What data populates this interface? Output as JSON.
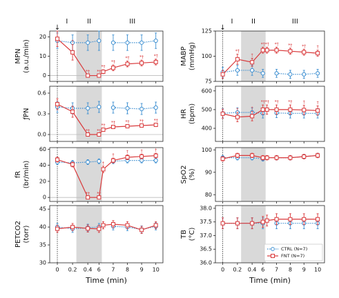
{
  "chart_data": [
    {
      "type": "line",
      "ylabel": [
        "MPN",
        "(a.u./min)"
      ],
      "phases": [
        "I",
        "II",
        "III"
      ],
      "onset": "↓",
      "x": [
        0,
        0.2,
        0.4,
        6,
        6.3,
        7,
        8,
        9,
        10
      ],
      "xlim": [
        -0.1,
        10.5
      ],
      "xbreak": [
        0.45,
        5.8
      ],
      "xticks": [
        0,
        0.2,
        0.4,
        6,
        7,
        8,
        9,
        10
      ],
      "shade": [
        0.25,
        6.2
      ],
      "ylim": [
        -3,
        23
      ],
      "yticks": [
        0,
        10,
        20
      ],
      "hline": 0,
      "series": [
        {
          "name": "CTRL (N=7)",
          "color": "#3d8fd1",
          "values": [
            18,
            17,
            17,
            18,
            null,
            17,
            17,
            17,
            18
          ],
          "errors": [
            4,
            4,
            4,
            5,
            null,
            4,
            4,
            4,
            4
          ]
        },
        {
          "name": "FNT (N=7)",
          "color": "#d9383a",
          "values": [
            19,
            12,
            0,
            0,
            2,
            4,
            6,
            6.5,
            7
          ],
          "errors": [
            4,
            4,
            0.5,
            0.5,
            1,
            1.5,
            1.5,
            1.5,
            1.5
          ],
          "labels": [
            null,
            "†",
            "*†",
            "*†",
            "*†",
            "*†",
            "*†",
            "*†",
            "*†"
          ]
        }
      ]
    },
    {
      "type": "line",
      "ylabel": [
        "ƒPN"
      ],
      "x": [
        0,
        0.2,
        0.4,
        6,
        6.3,
        7,
        8,
        9,
        10
      ],
      "xlim": [
        -0.1,
        10.5
      ],
      "xbreak": [
        0.45,
        5.8
      ],
      "xticks": [
        0,
        0.2,
        0.4,
        6,
        7,
        8,
        9,
        10
      ],
      "shade": [
        0.25,
        6.2
      ],
      "ylim": [
        -0.1,
        0.7
      ],
      "yticks": [
        {
          "value": 0,
          "label": "0.0"
        },
        {
          "value": 0.3,
          "label": "0.3"
        },
        {
          "value": 0.6,
          "label": "0.6"
        }
      ],
      "hline": 0,
      "series": [
        {
          "name": "CTRL (N=7)",
          "color": "#3d8fd1",
          "values": [
            0.4,
            0.38,
            0.38,
            0.4,
            null,
            0.39,
            0.38,
            0.37,
            0.39
          ],
          "errors": [
            0.08,
            0.08,
            0.08,
            0.08,
            null,
            0.08,
            0.08,
            0.08,
            0.08
          ]
        },
        {
          "name": "FNT (N=7)",
          "color": "#d9383a",
          "values": [
            0.44,
            0.33,
            0,
            0,
            0.07,
            0.11,
            0.12,
            0.13,
            0.14
          ],
          "errors": [
            0.08,
            0.08,
            0.01,
            0.01,
            0.02,
            0.02,
            0.02,
            0.02,
            0.02
          ],
          "labels": [
            null,
            null,
            "*†",
            "*†",
            "*†",
            "*†",
            "*†",
            "*†",
            "*†"
          ]
        }
      ]
    },
    {
      "type": "line",
      "ylabel": [
        "fR",
        "(br/min)"
      ],
      "x": [
        0,
        0.2,
        0.4,
        6,
        6.3,
        7,
        8,
        9,
        10
      ],
      "xlim": [
        -0.1,
        10.5
      ],
      "xbreak": [
        0.45,
        5.8
      ],
      "xticks": [
        0,
        0.2,
        0.4,
        6,
        7,
        8,
        9,
        10
      ],
      "shade": [
        0.25,
        6.2
      ],
      "ylim": [
        -5,
        62
      ],
      "yticks": [
        0,
        20,
        40,
        60
      ],
      "hline": 0,
      "series": [
        {
          "name": "CTRL (N=7)",
          "color": "#3d8fd1",
          "values": [
            44,
            43,
            44,
            45,
            null,
            45,
            46,
            46,
            46
          ],
          "errors": [
            3,
            3,
            3,
            3,
            null,
            3,
            3,
            3,
            3
          ]
        },
        {
          "name": "FNT (N=7)",
          "color": "#d9383a",
          "values": [
            47,
            41,
            0,
            0,
            35,
            46,
            50,
            51,
            52
          ],
          "errors": [
            3,
            3,
            1,
            1,
            4,
            3,
            3,
            3,
            3
          ],
          "labels": [
            null,
            null,
            "*†",
            "*†",
            "†",
            "†",
            "†",
            "†",
            "†"
          ]
        }
      ]
    },
    {
      "type": "line",
      "ylabel": [
        "PETCO2",
        "(torr)"
      ],
      "xlabel": "Time (min)",
      "x": [
        0,
        0.2,
        0.4,
        6,
        6.3,
        7,
        8,
        9,
        10
      ],
      "xlim": [
        -0.1,
        10.5
      ],
      "xbreak": [
        0.45,
        5.8
      ],
      "xticks": [
        0,
        0.2,
        0.4,
        6,
        7,
        8,
        9,
        10
      ],
      "shade": [
        0.25,
        6.2
      ],
      "ylim": [
        30,
        46
      ],
      "yticks": [
        30,
        35,
        40,
        45
      ],
      "series": [
        {
          "name": "CTRL (N=7)",
          "color": "#3d8fd1",
          "values": [
            40,
            39.5,
            39.8,
            40,
            null,
            40.2,
            40,
            39.3,
            40.2
          ],
          "errors": [
            1,
            1,
            1,
            1,
            null,
            1,
            1,
            1,
            1
          ]
        },
        {
          "name": "FNT (N=7)",
          "color": "#d9383a",
          "values": [
            39.5,
            40,
            39.6,
            39.5,
            40.5,
            40.8,
            40.5,
            39.2,
            40.5
          ],
          "errors": [
            1,
            1,
            1,
            1,
            1,
            1,
            1,
            1,
            1
          ]
        }
      ]
    },
    {
      "type": "line",
      "ylabel": [
        "MABP",
        "(mmHg)"
      ],
      "phases": [
        "I",
        "II",
        "III"
      ],
      "onset": "↓",
      "x": [
        0,
        0.2,
        0.4,
        6,
        6.3,
        7,
        8,
        9,
        10
      ],
      "xlim": [
        -0.1,
        10.5
      ],
      "xbreak": [
        0.45,
        5.8
      ],
      "xticks": [
        0,
        0.2,
        0.4,
        6,
        7,
        8,
        9,
        10
      ],
      "shade": [
        0.25,
        6.2
      ],
      "ylim": [
        75,
        125
      ],
      "yticks": [
        75,
        100,
        125
      ],
      "series": [
        {
          "name": "CTRL (N=7)",
          "color": "#3d8fd1",
          "values": [
            84,
            86,
            86,
            83,
            null,
            83,
            82,
            82,
            83
          ],
          "errors": [
            5,
            5,
            5,
            4,
            null,
            4,
            4,
            4,
            4
          ]
        },
        {
          "name": "FNT (N=7)",
          "color": "#d9383a",
          "values": [
            82,
            97,
            94,
            106,
            106,
            106,
            105,
            104,
            103
          ],
          "errors": [
            4,
            5,
            4,
            3,
            3,
            3,
            3,
            3,
            3
          ],
          "labels": [
            null,
            "*†",
            "†",
            "*†",
            "*†",
            "*†",
            "*†",
            "*†",
            "†"
          ]
        }
      ]
    },
    {
      "type": "line",
      "ylabel": [
        "HR",
        "(bpm)"
      ],
      "x": [
        0,
        0.2,
        0.4,
        6,
        6.3,
        7,
        8,
        9,
        10
      ],
      "xlim": [
        -0.1,
        10.5
      ],
      "xbreak": [
        0.45,
        5.8
      ],
      "xticks": [
        0,
        0.2,
        0.4,
        6,
        7,
        8,
        9,
        10
      ],
      "shade": [
        0.25,
        6.2
      ],
      "ylim": [
        330,
        625
      ],
      "yticks": [
        400,
        500,
        600
      ],
      "series": [
        {
          "name": "CTRL (N=7)",
          "color": "#3d8fd1",
          "values": [
            480,
            485,
            485,
            480,
            null,
            482,
            480,
            480,
            480
          ],
          "errors": [
            25,
            25,
            25,
            25,
            null,
            25,
            25,
            25,
            25
          ]
        },
        {
          "name": "FNT (N=7)",
          "color": "#d9383a",
          "values": [
            478,
            460,
            465,
            500,
            500,
            500,
            500,
            498,
            495
          ],
          "errors": [
            25,
            25,
            25,
            25,
            25,
            25,
            25,
            25,
            25
          ],
          "labels": [
            null,
            "†",
            "†",
            "*†",
            "*†",
            "*†",
            "*†",
            "†",
            "†"
          ]
        }
      ]
    },
    {
      "type": "line",
      "ylabel": [
        "SpO2",
        "(%)"
      ],
      "x": [
        0,
        0.2,
        0.4,
        6,
        6.3,
        7,
        8,
        9,
        10
      ],
      "xlim": [
        -0.1,
        10.5
      ],
      "xbreak": [
        0.45,
        5.8
      ],
      "xticks": [
        0,
        0.2,
        0.4,
        6,
        7,
        8,
        9,
        10
      ],
      "shade": [
        0.25,
        6.2
      ],
      "ylim": [
        77,
        101
      ],
      "yticks": [
        80,
        90,
        100
      ],
      "series": [
        {
          "name": "CTRL (N=7)",
          "color": "#3d8fd1",
          "values": [
            96.5,
            96.5,
            96.5,
            96,
            null,
            96.5,
            96.5,
            97,
            97.5
          ],
          "errors": [
            1,
            1,
            1,
            1,
            null,
            1,
            1,
            1,
            1
          ]
        },
        {
          "name": "FNT (N=7)",
          "color": "#d9383a",
          "values": [
            96,
            97.5,
            97.5,
            96.5,
            96.5,
            96.5,
            96.5,
            97,
            97.5
          ],
          "errors": [
            1,
            1,
            1,
            1,
            1,
            1,
            1,
            1,
            1
          ]
        }
      ]
    },
    {
      "type": "line",
      "ylabel": [
        "TB",
        "(°C)"
      ],
      "xlabel": "Time (min)",
      "legend": "lower right",
      "x": [
        0,
        0.2,
        0.4,
        6,
        6.3,
        7,
        8,
        9,
        10
      ],
      "xlim": [
        -0.1,
        10.5
      ],
      "xbreak": [
        0.45,
        5.8
      ],
      "xticks": [
        0,
        0.2,
        0.4,
        6,
        7,
        8,
        9,
        10
      ],
      "shade": [
        0.25,
        6.2
      ],
      "ylim": [
        36,
        38.1
      ],
      "yticks": [
        {
          "value": 36,
          "label": "36.0"
        },
        {
          "value": 36.5,
          "label": "36.5"
        },
        {
          "value": 37,
          "label": "37.0"
        },
        {
          "value": 37.5,
          "label": "37.5"
        },
        {
          "value": 38,
          "label": "38.0"
        }
      ],
      "series": [
        {
          "name": "CTRL (N=7)",
          "color": "#3d8fd1",
          "values": [
            37.45,
            37.45,
            37.45,
            37.45,
            null,
            37.45,
            37.45,
            37.45,
            37.45
          ],
          "errors": [
            0.2,
            0.2,
            0.2,
            0.2,
            null,
            0.2,
            0.2,
            0.2,
            0.2
          ]
        },
        {
          "name": "FNT (N=7)",
          "color": "#d9383a",
          "values": [
            37.45,
            37.45,
            37.45,
            37.5,
            37.55,
            37.6,
            37.6,
            37.6,
            37.6
          ],
          "errors": [
            0.2,
            0.2,
            0.2,
            0.2,
            0.2,
            0.2,
            0.2,
            0.2,
            0.2
          ]
        }
      ]
    }
  ]
}
